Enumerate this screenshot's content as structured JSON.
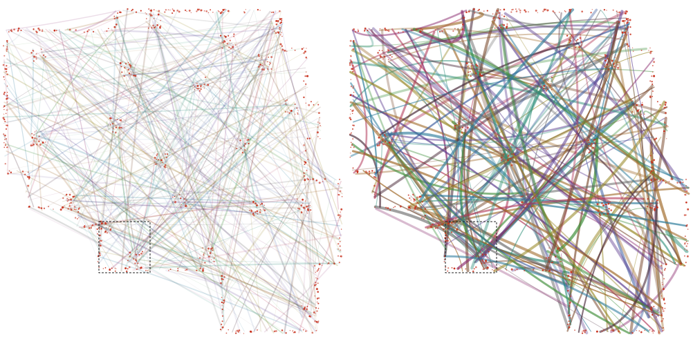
{
  "figure": {
    "panels": [
      {
        "id": "left",
        "style": "unbundled",
        "seed": 11,
        "strength": 0.04,
        "alpha": 0.2,
        "width_min": 0.5,
        "width_max": 2.4
      },
      {
        "id": "right",
        "style": "bundled",
        "seed": 11,
        "strength": 0.3,
        "alpha": 0.7,
        "width_min": 0.9,
        "width_max": 4.2
      }
    ],
    "inset_box": {
      "shown": true,
      "style": "dashed"
    }
  },
  "colors": {
    "background": "#ffffff",
    "nodes": "#c8321e",
    "inset_box": "#222222",
    "edge_palette": [
      "#7a4a2e",
      "#8a2a6e",
      "#5a3a8e",
      "#3a5a9e",
      "#2f8f7a",
      "#3f8f3a",
      "#9a8a2a",
      "#b23a5a",
      "#6a6a6a",
      "#a06a2a",
      "#4a2a3a",
      "#2a7a9a"
    ]
  }
}
